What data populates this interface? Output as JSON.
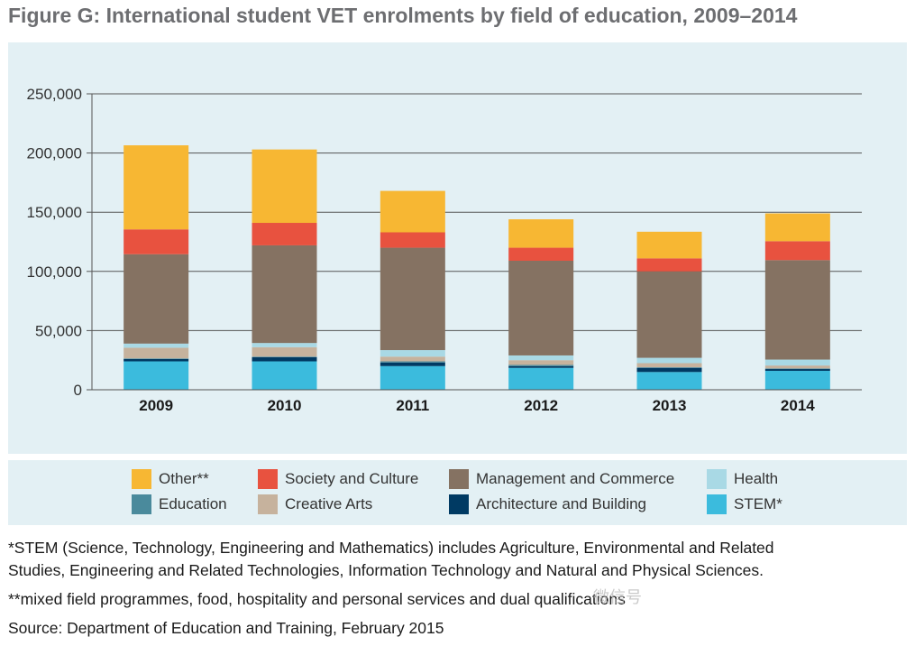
{
  "title": "Figure G: International student VET enrolments by field of education, 2009–2014",
  "chart_data": {
    "type": "bar",
    "stacked": true,
    "categories": [
      "2009",
      "2010",
      "2011",
      "2012",
      "2013",
      "2014"
    ],
    "ylim": [
      0,
      250000
    ],
    "yticks": [
      "0",
      "50,000",
      "100,000",
      "150,000",
      "200,000",
      "250,000"
    ],
    "ytick_values": [
      0,
      50000,
      100000,
      150000,
      200000,
      250000
    ],
    "grid": true,
    "legend_position": "bottom",
    "series": [
      {
        "name": "STEM*",
        "color": "#3bbbdd",
        "values": [
          24000,
          24000,
          20000,
          18500,
          15000,
          16000
        ]
      },
      {
        "name": "Architecture and Building",
        "color": "#003a63",
        "values": [
          2000,
          3500,
          3000,
          1500,
          3500,
          1500
        ]
      },
      {
        "name": "Education",
        "color": "#4a8a9c",
        "values": [
          500,
          500,
          1000,
          1000,
          500,
          500
        ]
      },
      {
        "name": "Creative Arts",
        "color": "#c6b29d",
        "values": [
          9000,
          8000,
          4000,
          4000,
          3500,
          2500
        ]
      },
      {
        "name": "Health",
        "color": "#a9d9e5",
        "values": [
          3500,
          3500,
          5500,
          4000,
          4500,
          5000
        ]
      },
      {
        "name": "Management and Commerce",
        "color": "#857262",
        "values": [
          75500,
          82500,
          86500,
          80000,
          73000,
          84000
        ]
      },
      {
        "name": "Society and Culture",
        "color": "#e8523f",
        "values": [
          21000,
          19000,
          13000,
          11000,
          11000,
          16000
        ]
      },
      {
        "name": "Other**",
        "color": "#f7b733",
        "values": [
          71000,
          62000,
          35000,
          24000,
          22500,
          23500
        ]
      }
    ]
  },
  "legend": [
    {
      "label": "Other**",
      "color": "#f7b733"
    },
    {
      "label": "Society and Culture",
      "color": "#e8523f"
    },
    {
      "label": "Management and Commerce",
      "color": "#857262"
    },
    {
      "label": "Health",
      "color": "#a9d9e5"
    },
    {
      "label": "Education",
      "color": "#4a8a9c"
    },
    {
      "label": "Creative Arts",
      "color": "#c6b29d"
    },
    {
      "label": "Architecture and Building",
      "color": "#003a63"
    },
    {
      "label": "STEM*",
      "color": "#3bbbdd"
    }
  ],
  "notes": {
    "stem_note_line1": "*STEM (Science, Technology, Engineering and Mathematics) includes Agriculture, Environmental and Related",
    "stem_note_line2": "Studies, Engineering and Related Technologies, Information Technology and Natural and Physical Sciences.",
    "other_note": "**mixed field programmes, food, hospitality and personal services and dual qualifications",
    "source": "Source: Department of Education and Training, February 2015"
  },
  "watermark": "微信号"
}
